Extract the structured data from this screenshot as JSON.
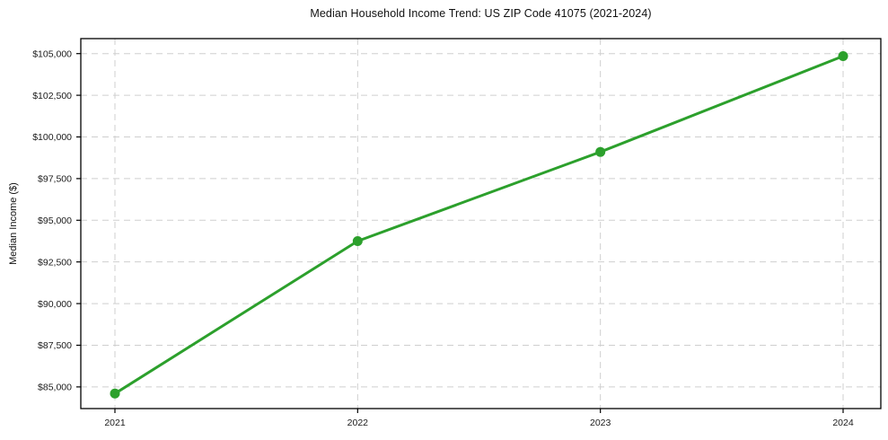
{
  "chart_data": {
    "type": "line",
    "title": "Median Household Income Trend: US ZIP Code 41075 (2021-2024)",
    "xlabel": "",
    "ylabel": "Median Income ($)",
    "x": [
      2021,
      2022,
      2023,
      2024
    ],
    "x_tick_labels": [
      "2021",
      "2022",
      "2023",
      "2024"
    ],
    "series": [
      {
        "values": [
          84600,
          93750,
          99100,
          104850
        ],
        "color": "#2ca02c",
        "marker": "circle",
        "line_width": 3
      }
    ],
    "y_ticks": [
      85000,
      87500,
      90000,
      92500,
      95000,
      97500,
      100000,
      102500,
      105000
    ],
    "y_tick_labels": [
      "$85,000",
      "$87,500",
      "$90,000",
      "$92,500",
      "$95,000",
      "$97,500",
      "$100,000",
      "$102,500",
      "$105,000"
    ],
    "ylim": [
      83700,
      105900
    ],
    "grid": true,
    "grid_style": "dashed",
    "legend": false,
    "colors": {
      "line": "#2ca02c",
      "grid": "#cfcfcf",
      "text": "#1a1a1a",
      "spine": "#000000",
      "background": "#ffffff"
    }
  }
}
